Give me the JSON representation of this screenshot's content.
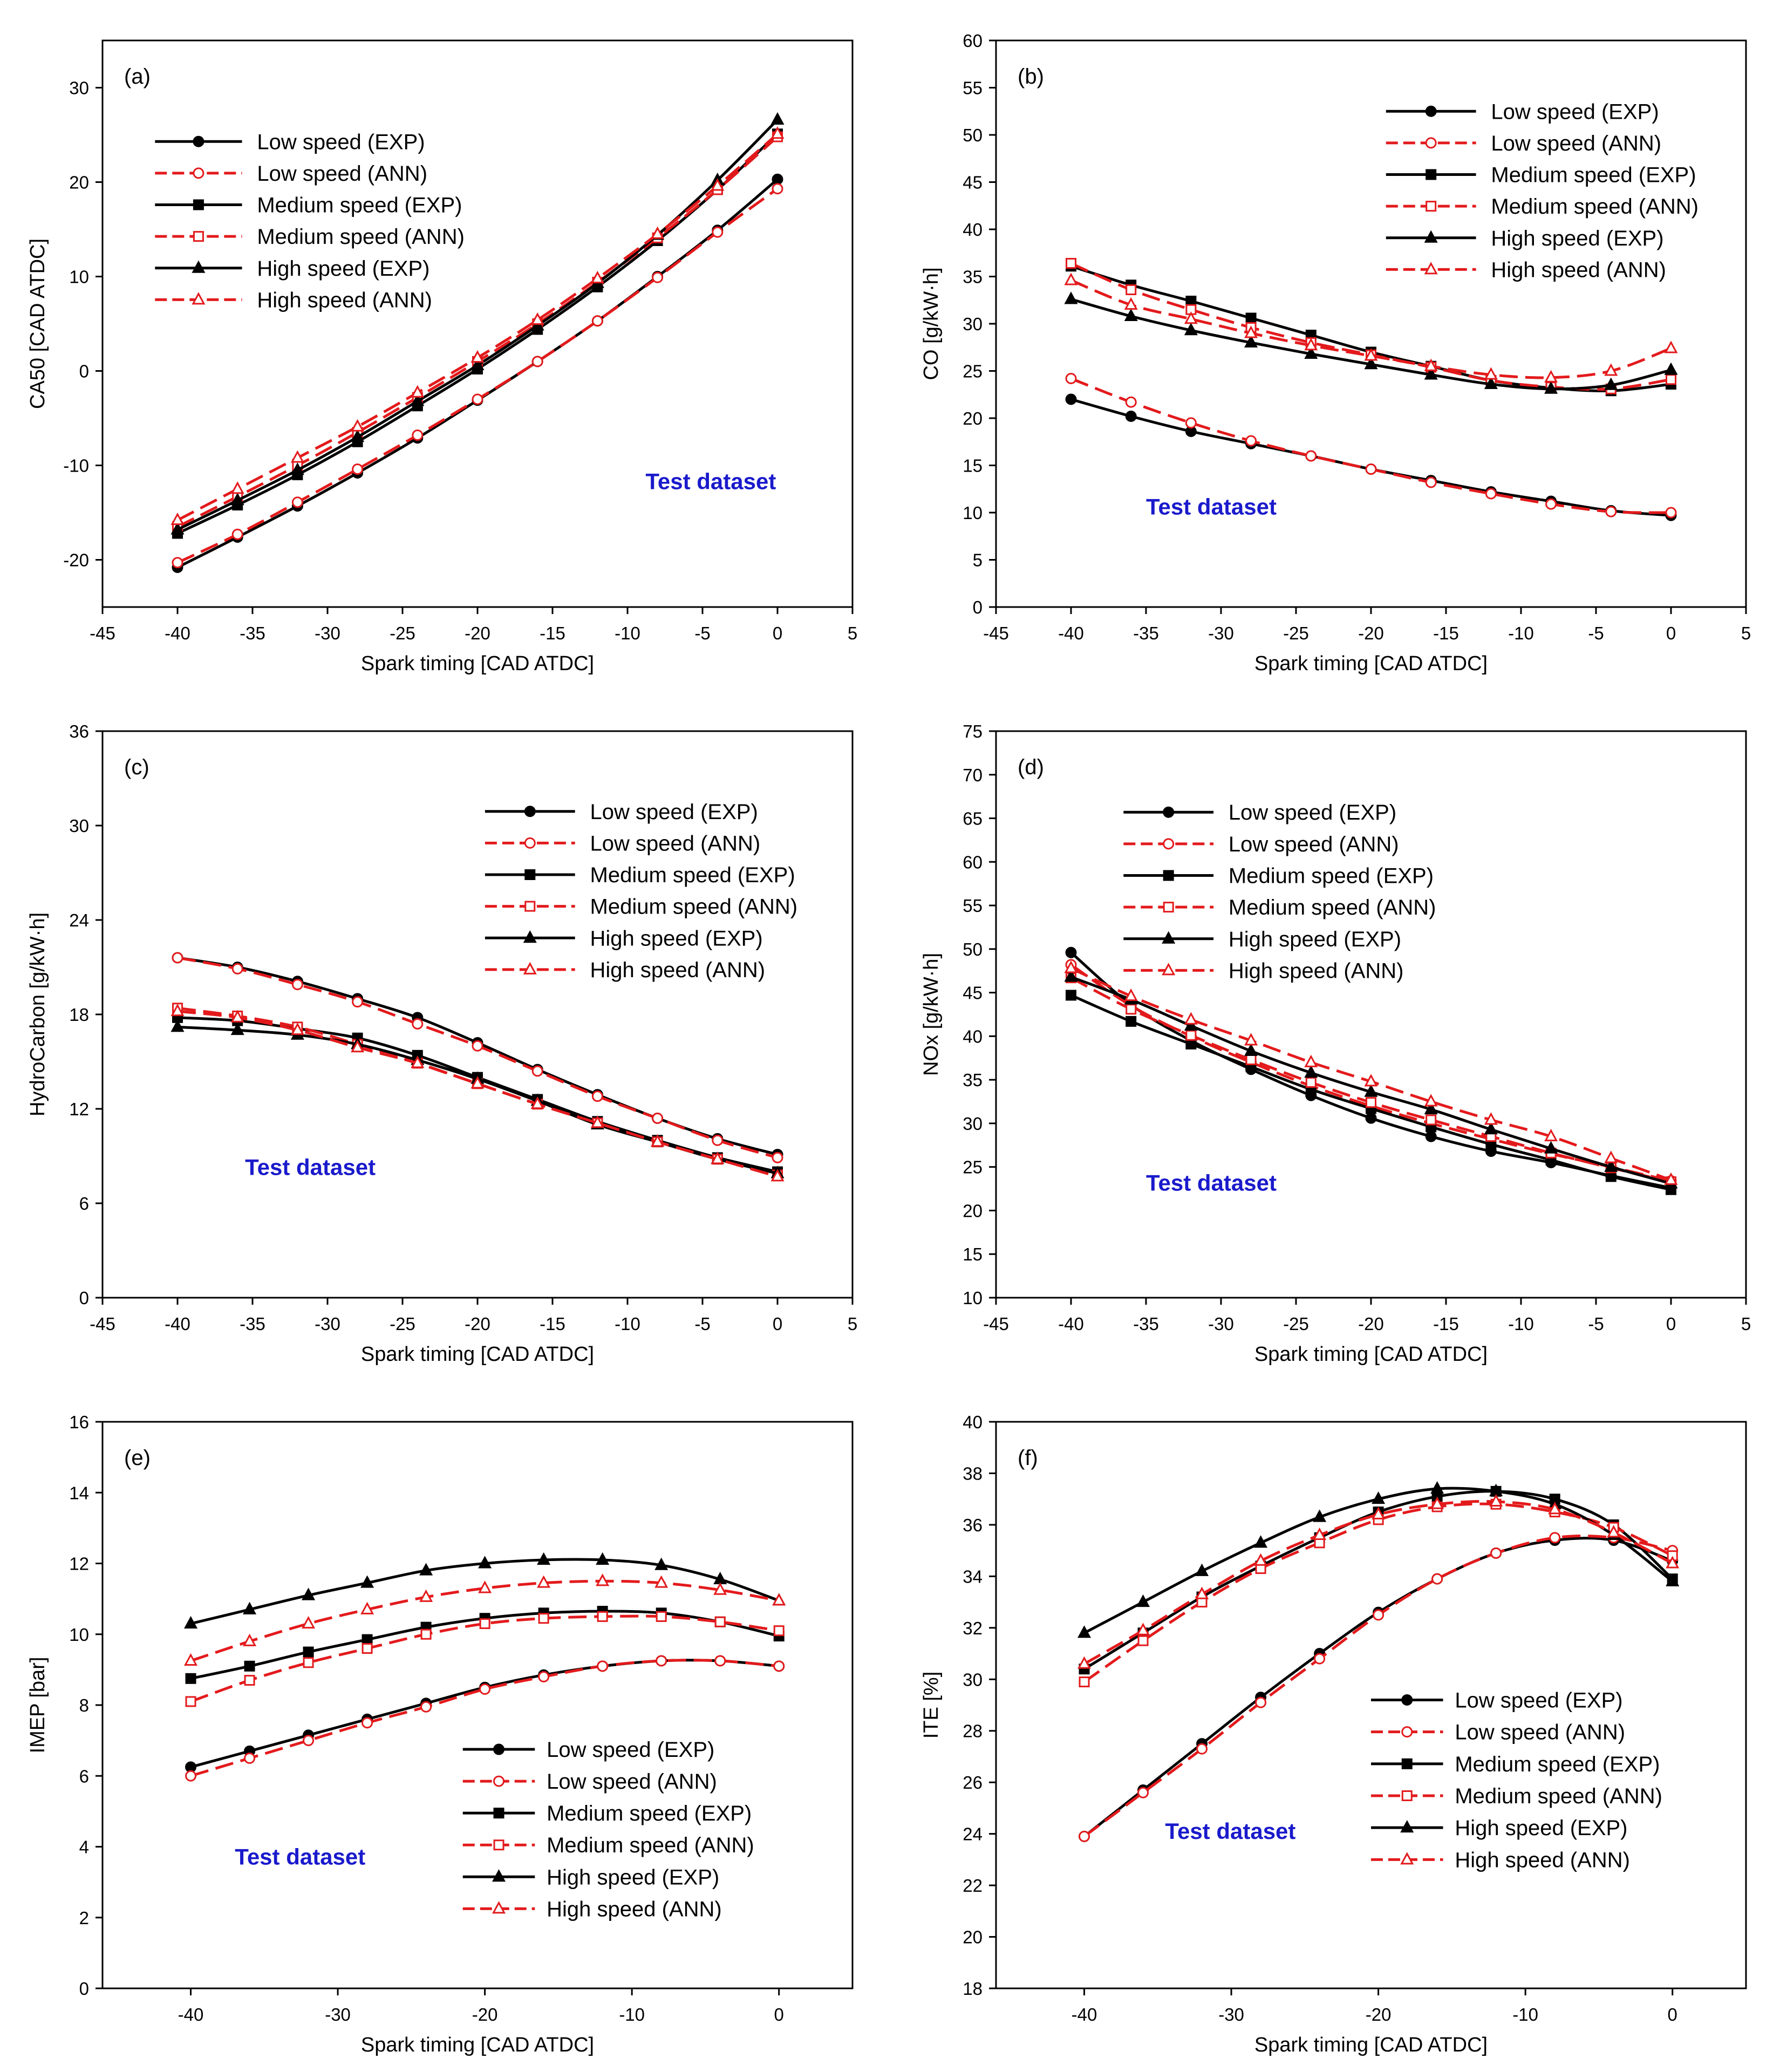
{
  "figure": {
    "legend_entries": [
      "Low speed (EXP)",
      "Low speed (ANN)",
      "Medium speed (EXP)",
      "Medium speed (ANN)",
      "High speed (EXP)",
      "High speed (ANN)"
    ],
    "annotation": "Test dataset",
    "colors": {
      "exp": "#000000",
      "ann": "#e31a1c",
      "annotation": "#1a1acc"
    }
  },
  "chart_data": [
    {
      "id": "a",
      "type": "line",
      "label": "(a)",
      "xlabel": "Spark timing [CAD ATDC]",
      "ylabel": "CA50 [CAD ATDC]",
      "xlim": [
        -45,
        5
      ],
      "ylim": [
        -25,
        35
      ],
      "xticks": [
        -45,
        -40,
        -35,
        -30,
        -25,
        -20,
        -15,
        -10,
        -5,
        0,
        5
      ],
      "yticks": [
        -20,
        -10,
        0,
        10,
        20,
        30
      ],
      "x": [
        -40,
        -36,
        -32,
        -28,
        -24,
        -20,
        -16,
        -12,
        -8,
        -4,
        0
      ],
      "series": [
        {
          "name": "Low speed (EXP)",
          "values": [
            -20.8,
            -17.6,
            -14.3,
            -10.8,
            -7.1,
            -3.1,
            1.0,
            5.3,
            10.0,
            14.9,
            20.3
          ]
        },
        {
          "name": "Low speed (ANN)",
          "values": [
            -20.3,
            -17.3,
            -13.9,
            -10.4,
            -6.8,
            -3.0,
            1.0,
            5.3,
            9.9,
            14.7,
            19.3
          ]
        },
        {
          "name": "Medium speed (EXP)",
          "values": [
            -17.2,
            -14.2,
            -11.0,
            -7.5,
            -3.7,
            0.2,
            4.4,
            8.9,
            13.8,
            19.2,
            25.1
          ]
        },
        {
          "name": "Medium speed (ANN)",
          "values": [
            -16.5,
            -13.3,
            -10.0,
            -6.5,
            -2.8,
            1.0,
            5.0,
            9.4,
            14.1,
            19.2,
            24.8
          ]
        },
        {
          "name": "High speed (EXP)",
          "values": [
            -16.8,
            -13.7,
            -10.5,
            -7.0,
            -3.2,
            0.6,
            4.8,
            9.3,
            14.4,
            20.2,
            26.6
          ]
        },
        {
          "name": "High speed (ANN)",
          "values": [
            -15.8,
            -12.5,
            -9.2,
            -5.9,
            -2.3,
            1.4,
            5.4,
            9.8,
            14.5,
            19.6,
            25.1
          ]
        }
      ],
      "legend": {
        "x": -41.5,
        "y": 24.3,
        "dy": 3.35,
        "len": 5.8,
        "gap": 1.0
      },
      "annotation": {
        "x": -8.8,
        "y": -12.5
      }
    },
    {
      "id": "b",
      "type": "line",
      "label": "(b)",
      "xlabel": "Spark timing [CAD ATDC]",
      "ylabel": "CO [g/kW·h]",
      "xlim": [
        -45,
        5
      ],
      "ylim": [
        0,
        60
      ],
      "xticks": [
        -45,
        -40,
        -35,
        -30,
        -25,
        -20,
        -15,
        -10,
        -5,
        0,
        5
      ],
      "yticks": [
        0,
        5,
        10,
        15,
        20,
        25,
        30,
        35,
        40,
        45,
        50,
        55,
        60
      ],
      "x": [
        -40,
        -36,
        -32,
        -28,
        -24,
        -20,
        -16,
        -12,
        -8,
        -4,
        0
      ],
      "series": [
        {
          "name": "Low speed (EXP)",
          "values": [
            22.0,
            20.2,
            18.6,
            17.3,
            16.0,
            14.6,
            13.4,
            12.2,
            11.2,
            10.2,
            9.7
          ]
        },
        {
          "name": "Low speed (ANN)",
          "values": [
            24.2,
            21.7,
            19.5,
            17.6,
            16.0,
            14.6,
            13.2,
            12.0,
            10.9,
            10.1,
            10.0
          ]
        },
        {
          "name": "Medium speed (EXP)",
          "values": [
            36.1,
            34.1,
            32.4,
            30.6,
            28.8,
            27.0,
            25.5,
            24.0,
            23.2,
            22.9,
            23.6
          ]
        },
        {
          "name": "Medium speed (ANN)",
          "values": [
            36.4,
            33.6,
            31.5,
            29.6,
            28.0,
            26.7,
            25.4,
            24.0,
            23.3,
            23.1,
            24.1
          ]
        },
        {
          "name": "High speed (EXP)",
          "values": [
            32.6,
            30.8,
            29.3,
            28.0,
            26.8,
            25.7,
            24.6,
            23.6,
            23.1,
            23.5,
            25.1
          ]
        },
        {
          "name": "High speed (ANN)",
          "values": [
            34.6,
            32.0,
            30.5,
            29.0,
            27.7,
            26.6,
            25.5,
            24.6,
            24.3,
            25.0,
            27.4
          ]
        }
      ],
      "legend": {
        "x": -19.0,
        "y": 52.5,
        "dy": 3.35,
        "len": 6.0,
        "gap": 1.0
      },
      "annotation": {
        "x": -35.0,
        "y": 9.8
      }
    },
    {
      "id": "c",
      "type": "line",
      "label": "(c)",
      "xlabel": "Spark timing [CAD ATDC]",
      "ylabel": "HydroCarbon [g/kW·h]",
      "xlim": [
        -45,
        5
      ],
      "ylim": [
        0,
        36
      ],
      "xticks": [
        -45,
        -40,
        -35,
        -30,
        -25,
        -20,
        -15,
        -10,
        -5,
        0,
        5
      ],
      "yticks": [
        0,
        6,
        12,
        18,
        24,
        30,
        36
      ],
      "x": [
        -40,
        -36,
        -32,
        -28,
        -24,
        -20,
        -16,
        -12,
        -8,
        -4,
        0
      ],
      "series": [
        {
          "name": "Low speed (EXP)",
          "values": [
            21.6,
            21.0,
            20.1,
            19.0,
            17.8,
            16.2,
            14.5,
            12.9,
            11.4,
            10.1,
            9.1
          ]
        },
        {
          "name": "Low speed (ANN)",
          "values": [
            21.6,
            20.9,
            19.9,
            18.8,
            17.4,
            16.0,
            14.4,
            12.8,
            11.4,
            10.0,
            8.9
          ]
        },
        {
          "name": "Medium speed (EXP)",
          "values": [
            17.8,
            17.6,
            17.1,
            16.5,
            15.4,
            14.0,
            12.6,
            11.2,
            10.0,
            8.9,
            8.0
          ]
        },
        {
          "name": "Medium speed (ANN)",
          "values": [
            18.4,
            17.9,
            17.2,
            16.1,
            14.9,
            13.6,
            12.3,
            11.1,
            9.9,
            8.8,
            7.8
          ]
        },
        {
          "name": "High speed (EXP)",
          "values": [
            17.2,
            17.0,
            16.7,
            16.1,
            15.1,
            13.9,
            12.5,
            11.0,
            9.9,
            8.8,
            7.9
          ]
        },
        {
          "name": "High speed (ANN)",
          "values": [
            18.2,
            17.8,
            17.0,
            15.9,
            14.9,
            13.6,
            12.3,
            11.1,
            9.9,
            8.8,
            7.7
          ]
        }
      ],
      "legend": {
        "x": -19.5,
        "y": 30.9,
        "dy": 2.01,
        "len": 6.0,
        "gap": 1.0
      },
      "annotation": {
        "x": -35.5,
        "y": 7.8
      }
    },
    {
      "id": "d",
      "type": "line",
      "label": "(d)",
      "xlabel": "Spark timing [CAD ATDC]",
      "ylabel": "NOx [g/kW·h]",
      "xlim": [
        -45,
        5
      ],
      "ylim": [
        10,
        75
      ],
      "xticks": [
        -45,
        -40,
        -35,
        -30,
        -25,
        -20,
        -15,
        -10,
        -5,
        0,
        5
      ],
      "yticks": [
        10,
        15,
        20,
        25,
        30,
        35,
        40,
        45,
        50,
        55,
        60,
        65,
        70,
        75
      ],
      "x": [
        -40,
        -36,
        -32,
        -28,
        -24,
        -20,
        -16,
        -12,
        -8,
        -4,
        0
      ],
      "series": [
        {
          "name": "Low speed (EXP)",
          "values": [
            49.6,
            43.6,
            39.5,
            36.2,
            33.2,
            30.6,
            28.5,
            26.8,
            25.5,
            24.0,
            22.6
          ]
        },
        {
          "name": "Low speed (ANN)",
          "values": [
            48.2,
            43.5,
            40.0,
            37.0,
            34.3,
            32.0,
            30.0,
            28.2,
            26.5,
            25.0,
            23.4
          ]
        },
        {
          "name": "Medium speed (EXP)",
          "values": [
            44.7,
            41.7,
            39.1,
            36.5,
            33.9,
            31.7,
            29.6,
            27.6,
            25.8,
            23.9,
            22.4
          ]
        },
        {
          "name": "Medium speed (ANN)",
          "values": [
            46.7,
            43.1,
            40.1,
            37.3,
            34.7,
            32.4,
            30.4,
            28.5,
            26.6,
            24.9,
            23.3
          ]
        },
        {
          "name": "High speed (EXP)",
          "values": [
            46.8,
            44.2,
            41.2,
            38.3,
            35.8,
            33.6,
            31.6,
            29.3,
            27.1,
            25.0,
            23.1
          ]
        },
        {
          "name": "High speed (ANN)",
          "values": [
            47.8,
            44.6,
            41.9,
            39.5,
            37.0,
            34.8,
            32.5,
            30.4,
            28.5,
            26.0,
            23.5
          ]
        }
      ],
      "legend": {
        "x": -36.5,
        "y": 65.7,
        "dy": 3.63,
        "len": 6.0,
        "gap": 1.0
      },
      "annotation": {
        "x": -35.0,
        "y": 22.3
      }
    },
    {
      "id": "e",
      "type": "line",
      "label": "(e)",
      "xlabel": "Spark timing [CAD ATDC]",
      "ylabel": "IMEP [bar]",
      "xlim": [
        -46,
        5
      ],
      "ylim": [
        0,
        16
      ],
      "xticks": [
        -40,
        -30,
        -20,
        -10,
        0
      ],
      "yticks": [
        0,
        2,
        4,
        6,
        8,
        10,
        12,
        14,
        16
      ],
      "x": [
        -40,
        -36,
        -32,
        -28,
        -24,
        -20,
        -16,
        -12,
        -8,
        -4,
        0
      ],
      "series": [
        {
          "name": "Low speed (EXP)",
          "values": [
            6.25,
            6.7,
            7.15,
            7.6,
            8.05,
            8.5,
            8.85,
            9.1,
            9.25,
            9.25,
            9.1
          ]
        },
        {
          "name": "Low speed (ANN)",
          "values": [
            6.0,
            6.5,
            7.0,
            7.5,
            7.95,
            8.45,
            8.8,
            9.1,
            9.25,
            9.25,
            9.1
          ]
        },
        {
          "name": "Medium speed (EXP)",
          "values": [
            8.75,
            9.1,
            9.5,
            9.85,
            10.2,
            10.45,
            10.6,
            10.65,
            10.6,
            10.35,
            9.95
          ]
        },
        {
          "name": "Medium speed (ANN)",
          "values": [
            8.1,
            8.7,
            9.2,
            9.6,
            10.0,
            10.3,
            10.45,
            10.5,
            10.5,
            10.35,
            10.1
          ]
        },
        {
          "name": "High speed (EXP)",
          "values": [
            10.3,
            10.7,
            11.1,
            11.45,
            11.8,
            12.0,
            12.1,
            12.1,
            11.95,
            11.55,
            10.95
          ]
        },
        {
          "name": "High speed (ANN)",
          "values": [
            9.25,
            9.8,
            10.3,
            10.7,
            11.05,
            11.3,
            11.45,
            11.5,
            11.45,
            11.25,
            10.95
          ]
        }
      ],
      "legend": {
        "x": -21.5,
        "y": 6.75,
        "dy": 0.9,
        "len": 4.9,
        "gap": 0.8
      },
      "annotation": {
        "x": -37.0,
        "y": 3.5
      }
    },
    {
      "id": "f",
      "type": "line",
      "label": "(f)",
      "xlabel": "Spark timing [CAD ATDC]",
      "ylabel": "ITE [%]",
      "xlim": [
        -46,
        5
      ],
      "ylim": [
        18,
        40
      ],
      "xticks": [
        -40,
        -30,
        -20,
        -10,
        0
      ],
      "yticks": [
        18,
        20,
        22,
        24,
        26,
        28,
        30,
        32,
        34,
        36,
        38,
        40
      ],
      "x": [
        -40,
        -36,
        -32,
        -28,
        -24,
        -20,
        -16,
        -12,
        -8,
        -4,
        0
      ],
      "series": [
        {
          "name": "Low speed (EXP)",
          "values": [
            23.9,
            25.7,
            27.5,
            29.3,
            31.0,
            32.6,
            33.9,
            34.9,
            35.4,
            35.4,
            34.6
          ]
        },
        {
          "name": "Low speed (ANN)",
          "values": [
            23.9,
            25.6,
            27.3,
            29.1,
            30.8,
            32.5,
            33.9,
            34.9,
            35.5,
            35.5,
            35.0
          ]
        },
        {
          "name": "Medium speed (EXP)",
          "values": [
            30.4,
            31.8,
            33.2,
            34.4,
            35.5,
            36.5,
            37.1,
            37.3,
            37.0,
            36.0,
            33.9
          ]
        },
        {
          "name": "Medium speed (ANN)",
          "values": [
            29.9,
            31.5,
            33.0,
            34.3,
            35.3,
            36.2,
            36.7,
            36.8,
            36.5,
            35.9,
            34.8
          ]
        },
        {
          "name": "High speed (EXP)",
          "values": [
            31.8,
            33.0,
            34.2,
            35.3,
            36.3,
            37.0,
            37.4,
            37.3,
            36.8,
            35.6,
            33.8
          ]
        },
        {
          "name": "High speed (ANN)",
          "values": [
            30.6,
            31.9,
            33.3,
            34.6,
            35.6,
            36.4,
            36.8,
            36.9,
            36.6,
            35.7,
            34.5
          ]
        }
      ],
      "legend": {
        "x": -20.5,
        "y": 29.2,
        "dy": 1.24,
        "len": 4.9,
        "gap": 0.8
      },
      "annotation": {
        "x": -34.5,
        "y": 23.8
      }
    }
  ]
}
